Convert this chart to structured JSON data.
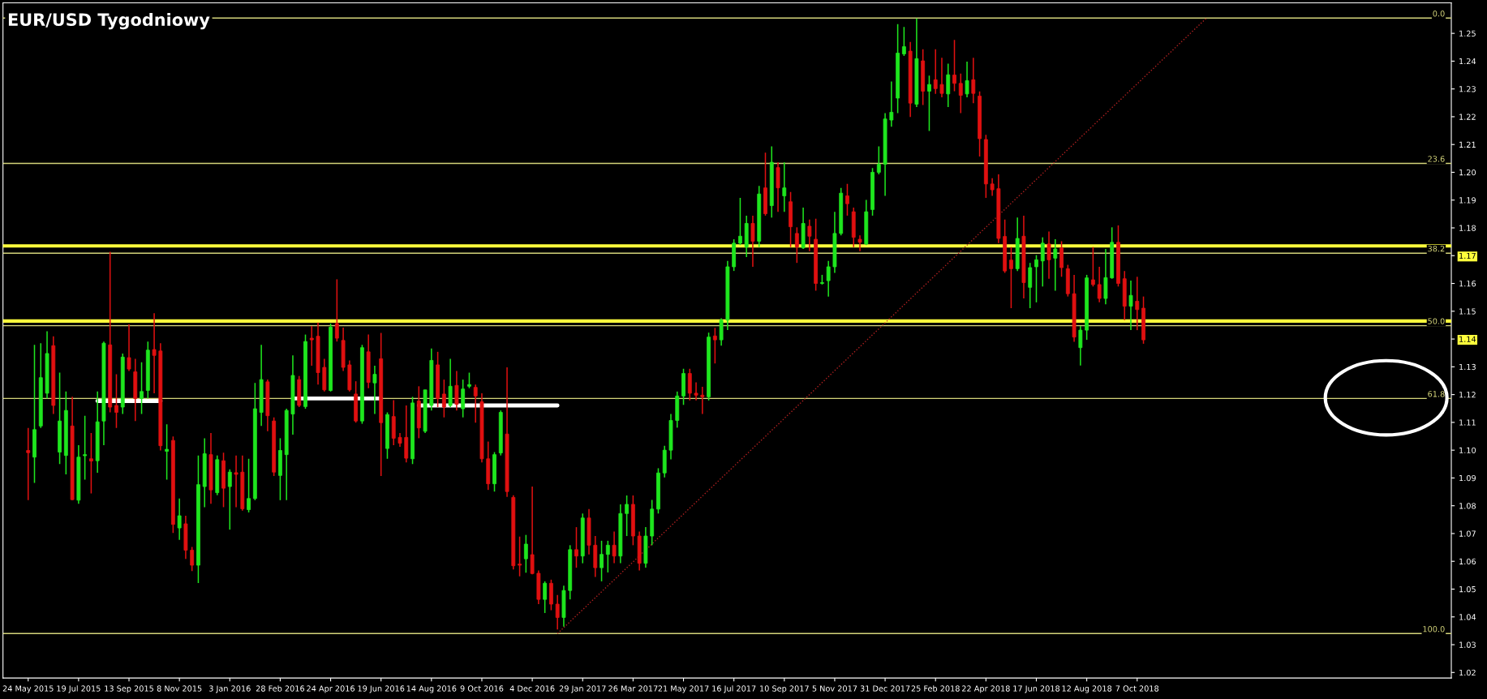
{
  "chart_data": {
    "type": "candlestick",
    "title": "EUR/USD Tygodniowy",
    "x": [
      "2015-05-24",
      "2015-05-31",
      "2015-06-07",
      "2015-06-14",
      "2015-06-21",
      "2015-06-28",
      "2015-07-05",
      "2015-07-12",
      "2015-07-19",
      "2015-07-26",
      "2015-08-02",
      "2015-08-09",
      "2015-08-16",
      "2015-08-23",
      "2015-08-30",
      "2015-09-06",
      "2015-09-13",
      "2015-09-20",
      "2015-09-27",
      "2015-10-04",
      "2015-10-11",
      "2015-10-18",
      "2015-10-25",
      "2015-11-01",
      "2015-11-08",
      "2015-11-15",
      "2015-11-22",
      "2015-11-29",
      "2015-12-06",
      "2015-12-13",
      "2015-12-20",
      "2015-12-27",
      "2016-01-03",
      "2016-01-10",
      "2016-01-17",
      "2016-01-24",
      "2016-01-31",
      "2016-02-07",
      "2016-02-14",
      "2016-02-21",
      "2016-02-28",
      "2016-03-06",
      "2016-03-13",
      "2016-03-20",
      "2016-03-27",
      "2016-04-03",
      "2016-04-10",
      "2016-04-17",
      "2016-04-24",
      "2016-05-01",
      "2016-05-08",
      "2016-05-15",
      "2016-05-22",
      "2016-05-29",
      "2016-06-05",
      "2016-06-12",
      "2016-06-19",
      "2016-06-26",
      "2016-07-03",
      "2016-07-10",
      "2016-07-17",
      "2016-07-24",
      "2016-07-31",
      "2016-08-07",
      "2016-08-14",
      "2016-08-21",
      "2016-08-28",
      "2016-09-04",
      "2016-09-11",
      "2016-09-18",
      "2016-09-25",
      "2016-10-02",
      "2016-10-09",
      "2016-10-16",
      "2016-10-23",
      "2016-10-30",
      "2016-11-06",
      "2016-11-13",
      "2016-11-20",
      "2016-11-27",
      "2016-12-04",
      "2016-12-11",
      "2016-12-18",
      "2016-12-25",
      "2017-01-01",
      "2017-01-08",
      "2017-01-15",
      "2017-01-22",
      "2017-01-29",
      "2017-02-05",
      "2017-02-12",
      "2017-02-19",
      "2017-02-26",
      "2017-03-05",
      "2017-03-12",
      "2017-03-19",
      "2017-03-26",
      "2017-04-02",
      "2017-04-09",
      "2017-04-16",
      "2017-04-23",
      "2017-04-30",
      "2017-05-07",
      "2017-05-14",
      "2017-05-21",
      "2017-05-28",
      "2017-06-04",
      "2017-06-11",
      "2017-06-18",
      "2017-06-25",
      "2017-07-02",
      "2017-07-09",
      "2017-07-16",
      "2017-07-23",
      "2017-07-30",
      "2017-08-06",
      "2017-08-13",
      "2017-08-20",
      "2017-08-27",
      "2017-09-03",
      "2017-09-10",
      "2017-09-17",
      "2017-09-24",
      "2017-10-01",
      "2017-10-08",
      "2017-10-15",
      "2017-10-22",
      "2017-10-29",
      "2017-11-05",
      "2017-11-12",
      "2017-11-19",
      "2017-11-26",
      "2017-12-03",
      "2017-12-10",
      "2017-12-17",
      "2017-12-24",
      "2017-12-31",
      "2018-01-07",
      "2018-01-14",
      "2018-01-21",
      "2018-01-28",
      "2018-02-04",
      "2018-02-11",
      "2018-02-18",
      "2018-02-25",
      "2018-03-04",
      "2018-03-11",
      "2018-03-18",
      "2018-03-25",
      "2018-04-01",
      "2018-04-08",
      "2018-04-15",
      "2018-04-22",
      "2018-04-29",
      "2018-05-06",
      "2018-05-13",
      "2018-05-20",
      "2018-05-27",
      "2018-06-03",
      "2018-06-10",
      "2018-06-17",
      "2018-06-24",
      "2018-07-01",
      "2018-07-08",
      "2018-07-15",
      "2018-07-22",
      "2018-07-29",
      "2018-08-05",
      "2018-08-12",
      "2018-08-19",
      "2018-08-26",
      "2018-09-02",
      "2018-09-09",
      "2018-09-16",
      "2018-09-23",
      "2018-09-30",
      "2018-10-07",
      "2018-10-14"
    ],
    "ohlc": [
      [
        1.0999,
        1.108,
        1.082,
        1.0991
      ],
      [
        1.0975,
        1.1379,
        1.0882,
        1.1074
      ],
      [
        1.1087,
        1.1385,
        1.108,
        1.1261
      ],
      [
        1.1205,
        1.1428,
        1.1186,
        1.1348
      ],
      [
        1.1376,
        1.141,
        1.113,
        1.1161
      ],
      [
        1.0993,
        1.1279,
        1.095,
        1.1105
      ],
      [
        1.0981,
        1.1211,
        1.0913,
        1.1143
      ],
      [
        1.1087,
        1.1192,
        1.082,
        1.0822
      ],
      [
        1.082,
        1.1018,
        1.0807,
        1.0975
      ],
      [
        1.098,
        1.1124,
        1.0894,
        1.0984
      ],
      [
        1.0969,
        1.1062,
        1.0844,
        1.0961
      ],
      [
        1.0962,
        1.1211,
        1.0919,
        1.1102
      ],
      [
        1.1105,
        1.1391,
        1.1018,
        1.1385
      ],
      [
        1.1379,
        1.1714,
        1.1136,
        1.1155
      ],
      [
        1.1161,
        1.1273,
        1.108,
        1.1136
      ],
      [
        1.1155,
        1.1348,
        1.113,
        1.1335
      ],
      [
        1.1333,
        1.1453,
        1.1285,
        1.1292
      ],
      [
        1.1282,
        1.1329,
        1.1105,
        1.1186
      ],
      [
        1.1186,
        1.1316,
        1.113,
        1.1211
      ],
      [
        1.1215,
        1.1391,
        1.1186,
        1.136
      ],
      [
        1.1362,
        1.1493,
        1.1205,
        1.1341
      ],
      [
        1.1357,
        1.1385,
        1.0999,
        1.1016
      ],
      [
        1.0996,
        1.1093,
        1.0894,
        1.1003
      ],
      [
        1.1035,
        1.1049,
        1.0702,
        1.0733
      ],
      [
        1.072,
        1.0826,
        1.0677,
        1.0764
      ],
      [
        1.0735,
        1.0764,
        1.0609,
        1.064
      ],
      [
        1.064,
        1.0652,
        1.0565,
        1.0586
      ],
      [
        1.0586,
        1.0981,
        1.0522,
        1.0876
      ],
      [
        1.0869,
        1.1043,
        1.0795,
        1.0987
      ],
      [
        1.0984,
        1.1062,
        1.0807,
        1.0857
      ],
      [
        1.0847,
        1.0981,
        1.0838,
        1.0966
      ],
      [
        1.0962,
        1.0991,
        1.0795,
        1.0863
      ],
      [
        1.0869,
        1.0931,
        1.0714,
        1.0921
      ],
      [
        1.0919,
        1.0981,
        1.0795,
        1.0913
      ],
      [
        1.0921,
        1.0981,
        1.0782,
        1.0789
      ],
      [
        1.0786,
        1.0969,
        1.0776,
        1.0826
      ],
      [
        1.0826,
        1.1242,
        1.082,
        1.1149
      ],
      [
        1.1136,
        1.1379,
        1.1087,
        1.1254
      ],
      [
        1.1246,
        1.1254,
        1.1068,
        1.1124
      ],
      [
        1.1105,
        1.1118,
        1.0907,
        1.0921
      ],
      [
        1.0909,
        1.1043,
        1.082,
        1.0999
      ],
      [
        1.0984,
        1.1149,
        1.082,
        1.1143
      ],
      [
        1.113,
        1.1341,
        1.1056,
        1.1269
      ],
      [
        1.1254,
        1.1267,
        1.1155,
        1.1161
      ],
      [
        1.1157,
        1.1416,
        1.1149,
        1.1391
      ],
      [
        1.1403,
        1.1447,
        1.1304,
        1.1397
      ],
      [
        1.141,
        1.1459,
        1.1236,
        1.1279
      ],
      [
        1.1298,
        1.1329,
        1.1211,
        1.1217
      ],
      [
        1.1215,
        1.1456,
        1.1211,
        1.1443
      ],
      [
        1.1456,
        1.1615,
        1.1391,
        1.1403
      ],
      [
        1.1395,
        1.1441,
        1.1285,
        1.1298
      ],
      [
        1.1307,
        1.1323,
        1.1211,
        1.1217
      ],
      [
        1.1202,
        1.1248,
        1.1099,
        1.1105
      ],
      [
        1.1105,
        1.1379,
        1.1095,
        1.1369
      ],
      [
        1.1354,
        1.1416,
        1.1223,
        1.1244
      ],
      [
        1.1242,
        1.1304,
        1.113,
        1.1273
      ],
      [
        1.1329,
        1.1422,
        1.0907,
        1.1099
      ],
      [
        1.1006,
        1.1136,
        1.0969,
        1.1128
      ],
      [
        1.1121,
        1.118,
        1.1018,
        1.1043
      ],
      [
        1.1046,
        1.1062,
        1.1012,
        1.1025
      ],
      [
        1.1046,
        1.1161,
        1.0956,
        1.0971
      ],
      [
        1.0969,
        1.1192,
        1.095,
        1.117
      ],
      [
        1.1177,
        1.123,
        1.1043,
        1.108
      ],
      [
        1.1068,
        1.1217,
        1.1062,
        1.1217
      ],
      [
        1.1161,
        1.1366,
        1.1143,
        1.1323
      ],
      [
        1.1307,
        1.1354,
        1.1155,
        1.1186
      ],
      [
        1.1202,
        1.1254,
        1.1118,
        1.1155
      ],
      [
        1.1161,
        1.1329,
        1.1155,
        1.123
      ],
      [
        1.1233,
        1.1285,
        1.1143,
        1.1165
      ],
      [
        1.1149,
        1.1254,
        1.1118,
        1.122
      ],
      [
        1.123,
        1.1279,
        1.1223,
        1.1236
      ],
      [
        1.1226,
        1.1236,
        1.1099,
        1.1195
      ],
      [
        1.1174,
        1.1205,
        1.0956,
        1.0969
      ],
      [
        1.0969,
        1.1031,
        1.0857,
        1.0879
      ],
      [
        1.0879,
        1.0993,
        1.0851,
        1.0984
      ],
      [
        1.099,
        1.1143,
        1.0981,
        1.1136
      ],
      [
        1.1058,
        1.1298,
        1.0832,
        1.0851
      ],
      [
        1.083,
        1.0838,
        1.0571,
        1.0584
      ],
      [
        1.059,
        1.0689,
        1.0546,
        1.0586
      ],
      [
        1.0609,
        1.0695,
        1.0559,
        1.0662
      ],
      [
        1.0624,
        1.0869,
        1.0553,
        1.0556
      ],
      [
        1.0557,
        1.0567,
        1.0446,
        1.0463
      ],
      [
        1.0463,
        1.0528,
        1.0414,
        1.0521
      ],
      [
        1.0521,
        1.0534,
        1.0424,
        1.0446
      ],
      [
        1.0446,
        1.0479,
        1.0355,
        1.0398
      ],
      [
        1.0398,
        1.0512,
        1.0365,
        1.0495
      ],
      [
        1.0495,
        1.0658,
        1.0463,
        1.0642
      ],
      [
        1.0642,
        1.0723,
        1.0577,
        1.0619
      ],
      [
        1.0619,
        1.0772,
        1.0593,
        1.0756
      ],
      [
        1.0756,
        1.0788,
        1.0625,
        1.0658
      ],
      [
        1.0658,
        1.0691,
        1.0544,
        1.0577
      ],
      [
        1.0577,
        1.0674,
        1.0528,
        1.0625
      ],
      [
        1.0625,
        1.0674,
        1.056,
        1.0658
      ],
      [
        1.0658,
        1.0707,
        1.0593,
        1.0619
      ],
      [
        1.0619,
        1.0805,
        1.0593,
        1.0772
      ],
      [
        1.0772,
        1.0837,
        1.0691,
        1.0805
      ],
      [
        1.0805,
        1.0837,
        1.0658,
        1.0691
      ],
      [
        1.0691,
        1.0707,
        1.0567,
        1.0593
      ],
      [
        1.0593,
        1.0723,
        1.0577,
        1.0691
      ],
      [
        1.0691,
        1.0821,
        1.0658,
        1.0788
      ],
      [
        1.0788,
        1.0935,
        1.0772,
        1.0918
      ],
      [
        1.0918,
        1.1016,
        1.0902,
        1.1
      ],
      [
        1.1,
        1.113,
        1.0967,
        1.1107
      ],
      [
        1.1107,
        1.1211,
        1.1081,
        1.1195
      ],
      [
        1.1195,
        1.1293,
        1.1163,
        1.1276
      ],
      [
        1.1276,
        1.1293,
        1.1179,
        1.1205
      ],
      [
        1.1205,
        1.1244,
        1.1179,
        1.1198
      ],
      [
        1.1198,
        1.1228,
        1.113,
        1.1192
      ],
      [
        1.1192,
        1.1423,
        1.1179,
        1.1407
      ],
      [
        1.1411,
        1.144,
        1.1312,
        1.1397
      ],
      [
        1.1397,
        1.1475,
        1.1376,
        1.1468
      ],
      [
        1.1468,
        1.1681,
        1.1432,
        1.166
      ],
      [
        1.166,
        1.1759,
        1.1645,
        1.1745
      ],
      [
        1.1745,
        1.1908,
        1.1738,
        1.177
      ],
      [
        1.1731,
        1.1844,
        1.1695,
        1.1816
      ],
      [
        1.1816,
        1.1844,
        1.166,
        1.1752
      ],
      [
        1.1752,
        1.1951,
        1.1731,
        1.1922
      ],
      [
        1.1944,
        1.2071,
        1.1844,
        1.1851
      ],
      [
        1.188,
        1.2093,
        1.1837,
        1.2036
      ],
      [
        1.2017,
        1.2036,
        1.1858,
        1.1944
      ],
      [
        1.1915,
        1.2036,
        1.1858,
        1.1944
      ],
      [
        1.1894,
        1.1929,
        1.1731,
        1.1804
      ],
      [
        1.178,
        1.1802,
        1.1674,
        1.1731
      ],
      [
        1.1728,
        1.1873,
        1.1724,
        1.1816
      ],
      [
        1.1806,
        1.183,
        1.1716,
        1.177
      ],
      [
        1.1759,
        1.1833,
        1.1574,
        1.16
      ],
      [
        1.16,
        1.1631,
        1.1596,
        1.1603
      ],
      [
        1.161,
        1.1681,
        1.1553,
        1.166
      ],
      [
        1.166,
        1.1858,
        1.1638,
        1.178
      ],
      [
        1.178,
        1.1944,
        1.1773,
        1.1925
      ],
      [
        1.1915,
        1.1958,
        1.1844,
        1.1887
      ],
      [
        1.1858,
        1.1873,
        1.1731,
        1.1766
      ],
      [
        1.1759,
        1.1773,
        1.1716,
        1.1748
      ],
      [
        1.1742,
        1.1901,
        1.1738,
        1.1858
      ],
      [
        1.1866,
        1.2015,
        1.1844,
        1.2
      ],
      [
        1.2,
        1.2093,
        1.1993,
        1.2029
      ],
      [
        1.2029,
        1.2213,
        1.1915,
        1.2192
      ],
      [
        1.2188,
        1.2327,
        1.2164,
        1.2216
      ],
      [
        1.2267,
        1.2533,
        1.2213,
        1.2429
      ],
      [
        1.2426,
        1.2523,
        1.2419,
        1.2452
      ],
      [
        1.2436,
        1.2469,
        1.2199,
        1.2249
      ],
      [
        1.2245,
        1.2554,
        1.2235,
        1.2409
      ],
      [
        1.2401,
        1.2443,
        1.2242,
        1.2292
      ],
      [
        1.2292,
        1.2348,
        1.2149,
        1.2316
      ],
      [
        1.2333,
        1.2443,
        1.2282,
        1.2301
      ],
      [
        1.2316,
        1.2412,
        1.227,
        1.2284
      ],
      [
        1.2282,
        1.2391,
        1.2235,
        1.2351
      ],
      [
        1.235,
        1.2476,
        1.2292,
        1.232
      ],
      [
        1.232,
        1.2355,
        1.2213,
        1.2277
      ],
      [
        1.2282,
        1.2398,
        1.227,
        1.233
      ],
      [
        1.2333,
        1.2412,
        1.2249,
        1.2284
      ],
      [
        1.2274,
        1.2291,
        1.2057,
        1.2121
      ],
      [
        1.2118,
        1.2135,
        1.1908,
        1.1958
      ],
      [
        1.1958,
        1.1979,
        1.1915,
        1.1937
      ],
      [
        1.1941,
        1.1993,
        1.1745,
        1.1762
      ],
      [
        1.1769,
        1.183,
        1.1638,
        1.1645
      ],
      [
        1.1684,
        1.1731,
        1.1511,
        1.1653
      ],
      [
        1.1653,
        1.1837,
        1.1645,
        1.1762
      ],
      [
        1.177,
        1.1844,
        1.1546,
        1.1603
      ],
      [
        1.1586,
        1.1674,
        1.1511,
        1.1657
      ],
      [
        1.166,
        1.1702,
        1.1532,
        1.1685
      ],
      [
        1.1681,
        1.1766,
        1.1589,
        1.1745
      ],
      [
        1.1742,
        1.1787,
        1.1617,
        1.1685
      ],
      [
        1.1691,
        1.1759,
        1.1574,
        1.1724
      ],
      [
        1.1728,
        1.1752,
        1.1624,
        1.1657
      ],
      [
        1.1653,
        1.1667,
        1.1553,
        1.1563
      ],
      [
        1.1563,
        1.1631,
        1.139,
        1.1407
      ],
      [
        1.1369,
        1.1447,
        1.1305,
        1.1432
      ],
      [
        1.1432,
        1.1631,
        1.1397,
        1.162
      ],
      [
        1.1613,
        1.1731,
        1.1589,
        1.1596
      ],
      [
        1.1596,
        1.166,
        1.1532,
        1.1546
      ],
      [
        1.1546,
        1.1724,
        1.1525,
        1.1621
      ],
      [
        1.162,
        1.1802,
        1.1617,
        1.1748
      ],
      [
        1.1748,
        1.1809,
        1.1589,
        1.16
      ],
      [
        1.1617,
        1.1645,
        1.1468,
        1.1518
      ],
      [
        1.1518,
        1.161,
        1.1432,
        1.1557
      ],
      [
        1.1536,
        1.1624,
        1.1432,
        1.1506
      ],
      [
        1.1511,
        1.1553,
        1.1383,
        1.1397
      ]
    ],
    "colors": [
      "#e01010",
      "#1ee61e",
      "#1ee61e",
      "#1ee61e",
      "#e01010",
      "#1ee61e",
      "#1ee61e",
      "#e01010",
      "#1ee61e",
      "#1ee61e",
      "#e01010",
      "#1ee61e",
      "#1ee61e",
      "#e01010",
      "#e01010",
      "#1ee61e",
      "#e01010",
      "#e01010",
      "#1ee61e",
      "#1ee61e",
      "#e01010",
      "#e01010",
      "#1ee61e",
      "#e01010",
      "#1ee61e",
      "#e01010",
      "#e01010",
      "#1ee61e",
      "#1ee61e",
      "#e01010",
      "#1ee61e",
      "#e01010",
      "#1ee61e",
      "#e01010",
      "#e01010",
      "#1ee61e",
      "#1ee61e",
      "#1ee61e",
      "#e01010",
      "#e01010",
      "#1ee61e",
      "#1ee61e",
      "#1ee61e",
      "#e01010",
      "#1ee61e",
      "#e01010",
      "#e01010",
      "#e01010",
      "#1ee61e",
      "#e01010",
      "#e01010",
      "#e01010",
      "#e01010",
      "#1ee61e",
      "#e01010",
      "#1ee61e",
      "#e01010",
      "#1ee61e",
      "#e01010",
      "#e01010",
      "#e01010",
      "#1ee61e",
      "#e01010",
      "#1ee61e",
      "#1ee61e",
      "#e01010",
      "#e01010",
      "#1ee61e",
      "#e01010",
      "#1ee61e",
      "#1ee61e",
      "#e01010",
      "#e01010",
      "#e01010",
      "#1ee61e",
      "#1ee61e",
      "#e01010",
      "#e01010",
      "#e01010",
      "#1ee61e",
      "#e01010",
      "#e01010",
      "#1ee61e",
      "#e01010",
      "#e01010",
      "#1ee61e",
      "#1ee61e",
      "#e01010",
      "#1ee61e",
      "#e01010",
      "#e01010",
      "#1ee61e",
      "#1ee61e",
      "#e01010",
      "#1ee61e",
      "#1ee61e",
      "#e01010",
      "#e01010",
      "#1ee61e",
      "#1ee61e",
      "#1ee61e",
      "#1ee61e",
      "#1ee61e",
      "#1ee61e",
      "#1ee61e",
      "#e01010",
      "#e01010",
      "#e01010",
      "#1ee61e",
      "#e01010",
      "#1ee61e",
      "#1ee61e",
      "#1ee61e",
      "#1ee61e",
      "#1ee61e",
      "#e01010",
      "#1ee61e",
      "#e01010",
      "#1ee61e",
      "#e01010",
      "#1ee61e",
      "#e01010",
      "#e01010",
      "#1ee61e",
      "#e01010",
      "#e01010",
      "#1ee61e",
      "#1ee61e",
      "#1ee61e",
      "#1ee61e",
      "#e01010",
      "#e01010",
      "#e01010",
      "#1ee61e",
      "#1ee61e",
      "#1ee61e",
      "#1ee61e",
      "#1ee61e",
      "#1ee61e",
      "#1ee61e",
      "#e01010",
      "#1ee61e",
      "#e01010",
      "#1ee61e",
      "#e01010",
      "#e01010",
      "#1ee61e",
      "#e01010",
      "#e01010",
      "#1ee61e",
      "#e01010",
      "#e01010",
      "#e01010",
      "#e01010",
      "#e01010",
      "#e01010",
      "#e01010",
      "#1ee61e",
      "#e01010",
      "#1ee61e",
      "#1ee61e",
      "#1ee61e",
      "#e01010",
      "#1ee61e",
      "#e01010",
      "#e01010",
      "#e01010",
      "#1ee61e",
      "#1ee61e",
      "#e01010",
      "#e01010",
      "#1ee61e",
      "#1ee61e",
      "#e01010",
      "#e01010",
      "#1ee61e",
      "#e01010",
      "#e01010"
    ],
    "series": [
      {
        "type": "line",
        "x": [
          "2017-01-01",
          "2018-12-23"
        ],
        "values": [
          1.034,
          1.2555
        ],
        "color": "#b02020",
        "line_style": "dotted"
      },
      {
        "type": "line",
        "x": [
          "2015-08-09",
          "2015-10-18"
        ],
        "values": [
          1.1177,
          1.1177
        ],
        "color": "#ffffff",
        "line_style": "solid"
      },
      {
        "type": "line",
        "x": [
          "2016-03-13",
          "2016-06-19"
        ],
        "values": [
          1.1186,
          1.1186
        ],
        "color": "#ffffff",
        "line_style": "solid"
      },
      {
        "type": "line",
        "x": [
          "2016-07-31",
          "2017-01-01"
        ],
        "values": [
          1.1161,
          1.1161
        ],
        "color": "#ffffff",
        "line_style": "solid"
      }
    ],
    "ref_lines": [
      {
        "axis": "y",
        "value": 1.1735,
        "color": "#ffff3c"
      },
      {
        "axis": "y",
        "value": 1.1465,
        "color": "#ffff3c"
      },
      {
        "axis": "y",
        "value": 1.2555,
        "color": "#d4d47a"
      },
      {
        "axis": "y",
        "value": 1.2032,
        "color": "#d4d47a"
      },
      {
        "axis": "y",
        "value": 1.1709,
        "color": "#d4d47a"
      },
      {
        "axis": "y",
        "value": 1.1448,
        "color": "#d4d47a"
      },
      {
        "axis": "y",
        "value": 1.1186,
        "color": "#d4d47a"
      },
      {
        "axis": "y",
        "value": 1.034,
        "color": "#d4d47a"
      }
    ],
    "annotations": [
      {
        "text": "0.0",
        "x": "2019-09-14",
        "y": 1.2555
      },
      {
        "text": "23.6",
        "x": "2019-09-14",
        "y": 1.2032
      },
      {
        "text": "38.2",
        "x": "2019-09-14",
        "y": 1.1709
      },
      {
        "text": "50.0",
        "x": "2019-09-14",
        "y": 1.1448
      },
      {
        "text": "61.8",
        "x": "2019-09-14",
        "y": 1.1186
      },
      {
        "text": "100.0",
        "x": "2019-09-14",
        "y": 1.034
      }
    ],
    "xlim": [
      "2015-04-26",
      "2019-09-21"
    ],
    "xticks": [
      {
        "value": "2015-05-24",
        "label": "24 May 2015"
      },
      {
        "value": "2015-07-19",
        "label": "19 Jul 2015"
      },
      {
        "value": "2015-09-13",
        "label": "13 Sep 2015"
      },
      {
        "value": "2015-11-08",
        "label": "8 Nov 2015"
      },
      {
        "value": "2016-01-03",
        "label": "3 Jan 2016"
      },
      {
        "value": "2016-02-28",
        "label": "28 Feb 2016"
      },
      {
        "value": "2016-04-24",
        "label": "24 Apr 2016"
      },
      {
        "value": "2016-06-19",
        "label": "19 Jun 2016"
      },
      {
        "value": "2016-08-14",
        "label": "14 Aug 2016"
      },
      {
        "value": "2016-10-09",
        "label": "9 Oct 2016"
      },
      {
        "value": "2016-12-04",
        "label": "4 Dec 2016"
      },
      {
        "value": "2017-01-29",
        "label": "29 Jan 2017"
      },
      {
        "value": "2017-03-26",
        "label": "26 Mar 2017"
      },
      {
        "value": "2017-05-21",
        "label": "21 May 2017"
      },
      {
        "value": "2017-07-16",
        "label": "16 Jul 2017"
      },
      {
        "value": "2017-09-10",
        "label": "10 Sep 2017"
      },
      {
        "value": "2017-11-05",
        "label": "5 Nov 2017"
      },
      {
        "value": "2017-12-31",
        "label": "31 Dec 2017"
      },
      {
        "value": "2018-02-25",
        "label": "25 Feb 2018"
      },
      {
        "value": "2018-04-22",
        "label": "22 Apr 2018"
      },
      {
        "value": "2018-06-17",
        "label": "17 Jun 2018"
      },
      {
        "value": "2018-08-12",
        "label": "12 Aug 2018"
      },
      {
        "value": "2018-10-07",
        "label": "7 Oct 2018"
      }
    ],
    "ylim": [
      1.018,
      1.261
    ],
    "yticks": [
      {
        "value": 1.02,
        "label": "1.02"
      },
      {
        "value": 1.03,
        "label": "1.03"
      },
      {
        "value": 1.04,
        "label": "1.04"
      },
      {
        "value": 1.05,
        "label": "1.05"
      },
      {
        "value": 1.06,
        "label": "1.06"
      },
      {
        "value": 1.07,
        "label": "1.07"
      },
      {
        "value": 1.08,
        "label": "1.08"
      },
      {
        "value": 1.09,
        "label": "1.09"
      },
      {
        "value": 1.1,
        "label": "1.10"
      },
      {
        "value": 1.11,
        "label": "1.11"
      },
      {
        "value": 1.12,
        "label": "1.12"
      },
      {
        "value": 1.13,
        "label": "1.13"
      },
      {
        "value": 1.14,
        "label": "1.14"
      },
      {
        "value": 1.15,
        "label": "1.15"
      },
      {
        "value": 1.16,
        "label": "1.16"
      },
      {
        "value": 1.17,
        "label": "1.17"
      },
      {
        "value": 1.18,
        "label": "1.18"
      },
      {
        "value": 1.19,
        "label": "1.19"
      },
      {
        "value": 1.2,
        "label": "1.20"
      },
      {
        "value": 1.21,
        "label": "1.21"
      },
      {
        "value": 1.22,
        "label": "1.22"
      },
      {
        "value": 1.23,
        "label": "1.23"
      },
      {
        "value": 1.24,
        "label": "1.24"
      },
      {
        "value": 1.25,
        "label": "1.25"
      }
    ],
    "grid": false,
    "legend": false
  }
}
